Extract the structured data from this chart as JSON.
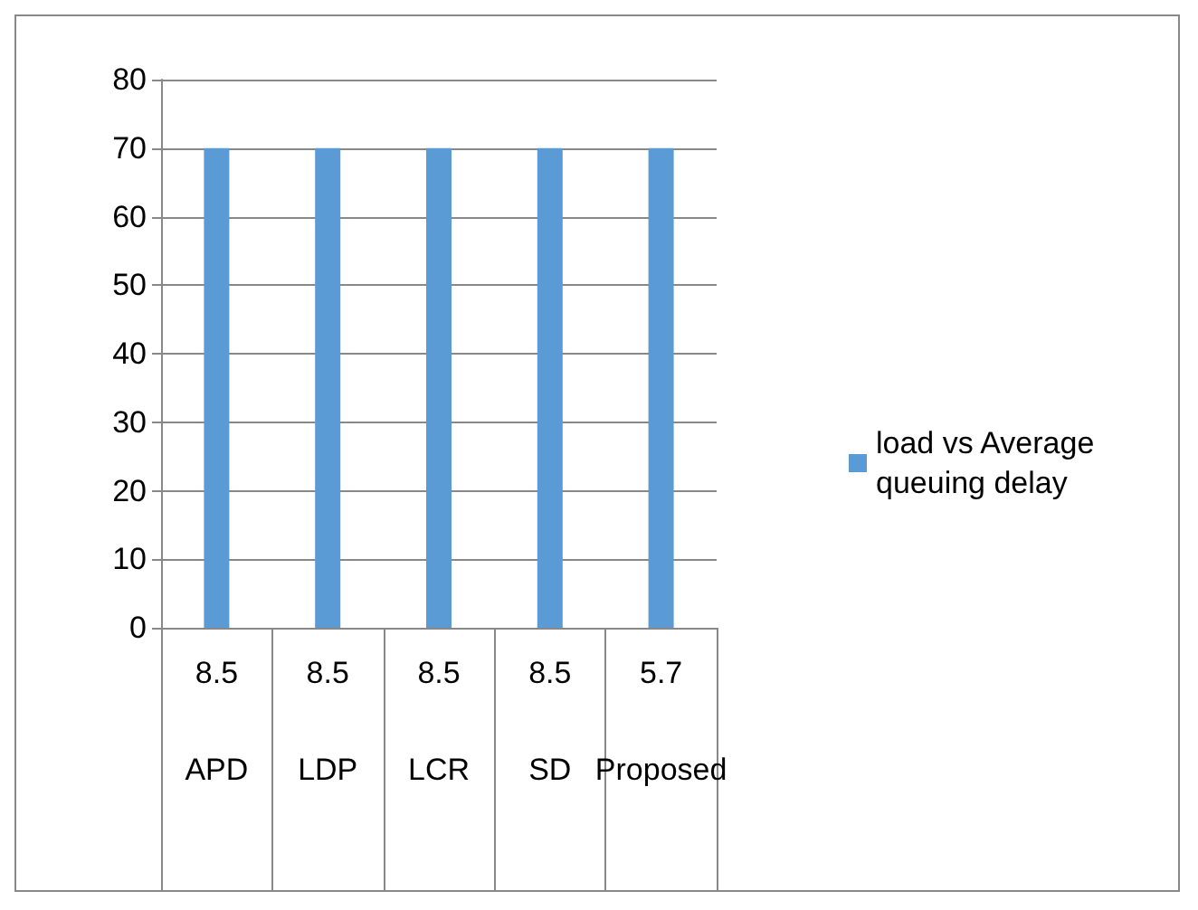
{
  "chart_data": {
    "type": "bar",
    "categories": [
      "APD",
      "LDP",
      "LCR",
      "SD",
      "Proposed"
    ],
    "series": [
      {
        "name": "load vs Average queuing delay",
        "color": "#5b9bd5",
        "values": [
          70,
          70,
          70,
          70,
          70
        ]
      }
    ],
    "annotations": [
      "8.5",
      "8.5",
      "8.5",
      "8.5",
      "5.7"
    ],
    "ylim": [
      0,
      80
    ],
    "yticks": [
      0,
      10,
      20,
      30,
      40,
      50,
      60,
      70,
      80
    ],
    "grid": "y",
    "legend": "right"
  }
}
